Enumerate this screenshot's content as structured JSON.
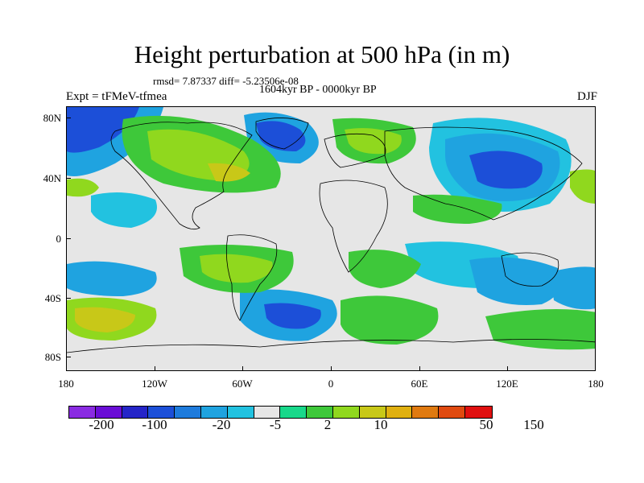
{
  "title": "Height perturbation at 500 hPa (in m)",
  "stats": "rmsd= 7.87337 diff= -5.23506e-08",
  "period": "1604kyr BP - 0000kyr BP",
  "experiment": "Expt = tFMeV-tfmea",
  "season": "DJF",
  "lat_labels": [
    "80N",
    "40N",
    "0",
    "40S",
    "80S"
  ],
  "lon_labels": [
    "180",
    "120W",
    "60W",
    "0",
    "60E",
    "120E",
    "180"
  ],
  "colorbar": {
    "colors": [
      "#8a2be2",
      "#6a0dd6",
      "#2525c8",
      "#1c4fd8",
      "#1e7bdc",
      "#1fa3e0",
      "#22c2e0",
      "#e6e6e6",
      "#18d88a",
      "#3ec83a",
      "#90d81e",
      "#c8c818",
      "#e0b010",
      "#e07a10",
      "#e04a10",
      "#e01010"
    ],
    "labels": [
      "-200",
      "-100",
      "-20",
      "-5",
      "2",
      "10",
      "50",
      "150"
    ]
  },
  "map_colors": {
    "background": "#e6e6e6",
    "neg_weak": "#22c2e0",
    "neg_mid": "#1fa3e0",
    "neg_strong": "#1c4fd8",
    "pos_weak": "#18d88a",
    "pos_mid": "#3ec83a",
    "pos_strong": "#90d81e",
    "pos_max": "#c8c818",
    "coast": "#000000"
  }
}
